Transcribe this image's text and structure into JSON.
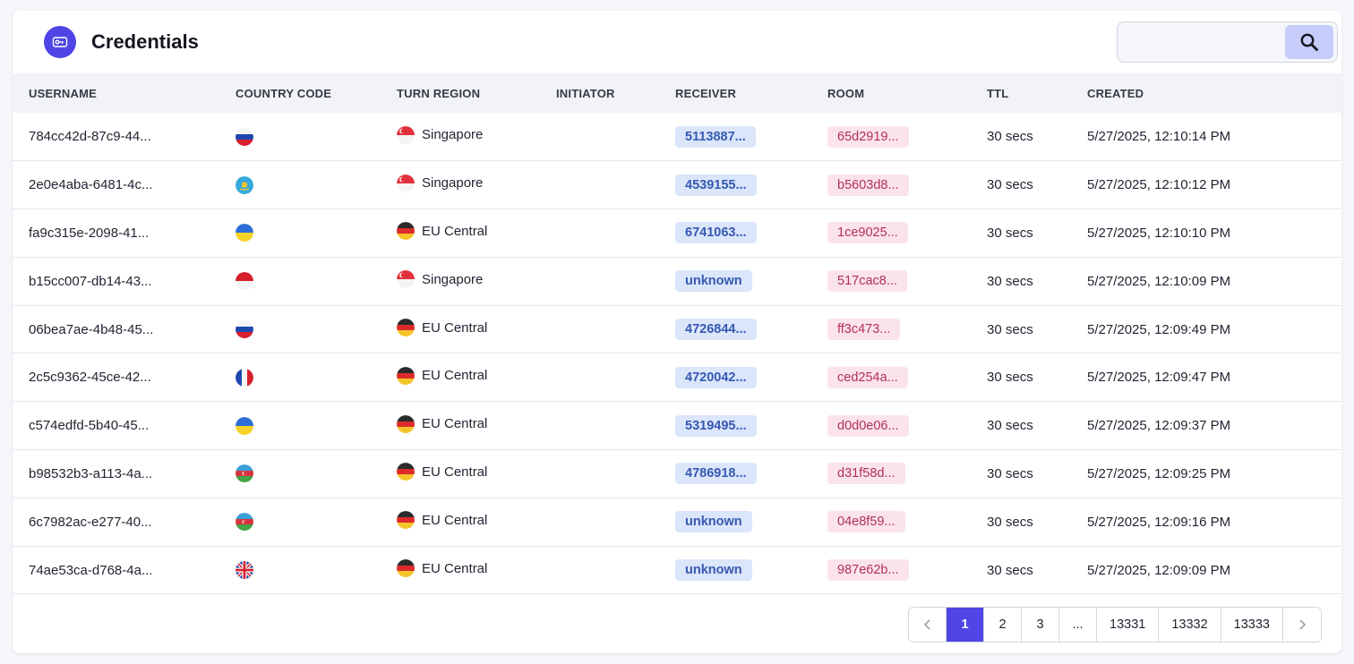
{
  "header": {
    "title": "Credentials"
  },
  "search": {
    "placeholder": ""
  },
  "columns": [
    "USERNAME",
    "COUNTRY CODE",
    "TURN REGION",
    "INITIATOR",
    "RECEIVER",
    "ROOM",
    "TTL",
    "CREATED"
  ],
  "rows": [
    {
      "username": "784cc42d-87c9-44...",
      "country": "ru",
      "region": "Singapore",
      "region_flag": "sg",
      "initiator": "",
      "receiver": "5113887...",
      "room": "65d2919...",
      "ttl": "30 secs",
      "created": "5/27/2025, 12:10:14 PM"
    },
    {
      "username": "2e0e4aba-6481-4c...",
      "country": "kz",
      "region": "Singapore",
      "region_flag": "sg",
      "initiator": "",
      "receiver": "4539155...",
      "room": "b5603d8...",
      "ttl": "30 secs",
      "created": "5/27/2025, 12:10:12 PM"
    },
    {
      "username": "fa9c315e-2098-41...",
      "country": "ua",
      "region": "EU Central",
      "region_flag": "de",
      "initiator": "",
      "receiver": "6741063...",
      "room": "1ce9025...",
      "ttl": "30 secs",
      "created": "5/27/2025, 12:10:10 PM"
    },
    {
      "username": "b15cc007-db14-43...",
      "country": "id",
      "region": "Singapore",
      "region_flag": "sg",
      "initiator": "",
      "receiver": "unknown",
      "room": "517cac8...",
      "ttl": "30 secs",
      "created": "5/27/2025, 12:10:09 PM"
    },
    {
      "username": "06bea7ae-4b48-45...",
      "country": "ru",
      "region": "EU Central",
      "region_flag": "de",
      "initiator": "",
      "receiver": "4726844...",
      "room": "ff3c473...",
      "ttl": "30 secs",
      "created": "5/27/2025, 12:09:49 PM"
    },
    {
      "username": "2c5c9362-45ce-42...",
      "country": "fr",
      "region": "EU Central",
      "region_flag": "de",
      "initiator": "",
      "receiver": "4720042...",
      "room": "ced254a...",
      "ttl": "30 secs",
      "created": "5/27/2025, 12:09:47 PM"
    },
    {
      "username": "c574edfd-5b40-45...",
      "country": "ua",
      "region": "EU Central",
      "region_flag": "de",
      "initiator": "",
      "receiver": "5319495...",
      "room": "d0d0e06...",
      "ttl": "30 secs",
      "created": "5/27/2025, 12:09:37 PM"
    },
    {
      "username": "b98532b3-a113-4a...",
      "country": "az",
      "region": "EU Central",
      "region_flag": "de",
      "initiator": "",
      "receiver": "4786918...",
      "room": "d31f58d...",
      "ttl": "30 secs",
      "created": "5/27/2025, 12:09:25 PM"
    },
    {
      "username": "6c7982ac-e277-40...",
      "country": "az",
      "region": "EU Central",
      "region_flag": "de",
      "initiator": "",
      "receiver": "unknown",
      "room": "04e8f59...",
      "ttl": "30 secs",
      "created": "5/27/2025, 12:09:16 PM"
    },
    {
      "username": "74ae53ca-d768-4a...",
      "country": "gb",
      "region": "EU Central",
      "region_flag": "de",
      "initiator": "",
      "receiver": "unknown",
      "room": "987e62b...",
      "ttl": "30 secs",
      "created": "5/27/2025, 12:09:09 PM"
    }
  ],
  "pagination": {
    "pages": [
      "1",
      "2",
      "3",
      "...",
      "13331",
      "13332",
      "13333"
    ],
    "active": "1"
  },
  "colors": {
    "accent": "#4f46e5",
    "receiver_bg": "#dbe6fb",
    "room_bg": "#fbe3ec"
  }
}
